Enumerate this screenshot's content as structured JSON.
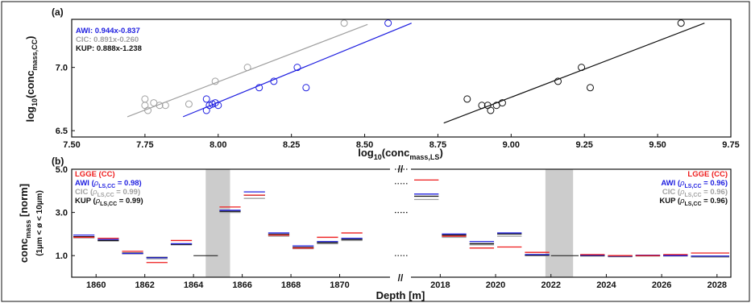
{
  "figure": {
    "panel_a_label": "(a)",
    "panel_b_label": "(b)"
  },
  "chart_data": [
    {
      "type": "scatter",
      "panel": "(a)",
      "xlabel": {
        "base": "log",
        "sub1": "10",
        "mid": "(conc",
        "sub2": "mass,LS",
        "end": ")"
      },
      "ylabel": {
        "base": "log",
        "sub1": "10",
        "mid": "(conc",
        "sub2": "mass,CC",
        "end": ")"
      },
      "xlim": [
        7.5,
        9.75
      ],
      "ylim": [
        6.45,
        7.38
      ],
      "xticks": [
        "7.50",
        "7.75",
        "8.00",
        "8.25",
        "8.50",
        "8.75",
        "9.00",
        "9.25",
        "9.50",
        "9.75"
      ],
      "yticks": [
        "6.5",
        "7.0"
      ],
      "legend_position": "top-left",
      "series": [
        {
          "name": "AWI: 0.944x-0.837",
          "color": "#2020e0",
          "points": [
            [
              7.96,
              6.75
            ],
            [
              7.97,
              6.7
            ],
            [
              7.98,
              6.71
            ],
            [
              7.99,
              6.72
            ],
            [
              8.0,
              6.7
            ],
            [
              7.96,
              6.66
            ],
            [
              8.14,
              6.84
            ],
            [
              8.19,
              6.89
            ],
            [
              8.27,
              7.0
            ],
            [
              8.3,
              6.84
            ],
            [
              8.58,
              7.35
            ]
          ],
          "fit": [
            [
              7.88,
              6.61
            ],
            [
              8.66,
              7.35
            ]
          ]
        },
        {
          "name": "CIC: 0.891x-0.260",
          "color": "#a0a0a0",
          "points": [
            [
              7.75,
              6.75
            ],
            [
              7.75,
              6.7
            ],
            [
              7.76,
              6.66
            ],
            [
              7.78,
              6.72
            ],
            [
              7.8,
              6.7
            ],
            [
              7.82,
              6.7
            ],
            [
              7.9,
              6.71
            ],
            [
              7.99,
              6.89
            ],
            [
              8.1,
              7.0
            ],
            [
              8.43,
              7.35
            ]
          ],
          "fit": [
            [
              7.69,
              6.61
            ],
            [
              8.51,
              7.34
            ]
          ]
        },
        {
          "name": "KUP: 0.888x-1.238",
          "color": "#111111",
          "points": [
            [
              8.85,
              6.75
            ],
            [
              8.9,
              6.7
            ],
            [
              8.92,
              6.7
            ],
            [
              8.93,
              6.66
            ],
            [
              8.95,
              6.7
            ],
            [
              8.97,
              6.72
            ],
            [
              9.16,
              6.89
            ],
            [
              9.24,
              7.0
            ],
            [
              9.27,
              6.84
            ],
            [
              9.58,
              7.35
            ]
          ],
          "fit": [
            [
              8.77,
              6.56
            ],
            [
              9.66,
              7.35
            ]
          ]
        }
      ]
    },
    {
      "type": "bar",
      "panel": "(b)",
      "xlabel": "Depth [m]",
      "ylabel": {
        "base": "conc",
        "sub": "mass",
        "unit": " [norm]",
        "line2": "(1µm < ø < 10µm)"
      },
      "ylim": [
        0,
        5
      ],
      "yticks": [
        "1.0",
        "3.0",
        "5.0"
      ],
      "break_mark": "//",
      "left_xticks": [
        "1860",
        "1862",
        "1864",
        "1866",
        "1868",
        "1870"
      ],
      "right_xticks": [
        "2018",
        "2020",
        "2022",
        "2024",
        "2026",
        "2028"
      ],
      "left_range": [
        1859,
        1872
      ],
      "right_range": [
        2017,
        2028.5
      ],
      "shaded_left": [
        1864.5,
        1865.5
      ],
      "shaded_right": [
        2021.8,
        2022.8
      ],
      "legend_left": [
        {
          "text": "LGGE (CC)",
          "color": "#ee1c1c",
          "rho": false
        },
        {
          "text": "AWI (",
          "value": " = 0.98)",
          "color": "#2020e0",
          "rho": true
        },
        {
          "text": "CIC (",
          "value": " = 0.99)",
          "color": "#a0a0a0",
          "rho": true
        },
        {
          "text": "KUP (",
          "value": " = 0.99)",
          "color": "#111111",
          "rho": true
        }
      ],
      "legend_right": [
        {
          "text": "LGGE (CC)",
          "color": "#ee1c1c",
          "rho": false
        },
        {
          "text": "AWI (",
          "value": " = 0.96)",
          "color": "#2020e0",
          "rho": true
        },
        {
          "text": "CIC (",
          "value": " = 0.96)",
          "color": "#a0a0a0",
          "rho": true
        },
        {
          "text": "KUP (",
          "value": " = 0.96)",
          "color": "#111111",
          "rho": true
        }
      ],
      "rho_symbol": "ρ",
      "rho_sub": "LS,CC",
      "series_colors": {
        "LGGE": "#ee1c1c",
        "AWI": "#2020e0",
        "CIC": "#a0a0a0",
        "KUP": "#111111"
      },
      "left_segments": [
        {
          "x": [
            1859,
            1860
          ],
          "LGGE": 1.85,
          "AWI": 1.95,
          "CIC": 1.82,
          "KUP": 1.88
        },
        {
          "x": [
            1860,
            1861
          ],
          "LGGE": 1.8,
          "AWI": 1.75,
          "CIC": 1.68,
          "KUP": 1.7
        },
        {
          "x": [
            1861,
            1862
          ],
          "LGGE": 1.2,
          "AWI": 1.1,
          "CIC": 1.08,
          "KUP": 1.12
        },
        {
          "x": [
            1862,
            1863
          ],
          "LGGE": 0.68,
          "AWI": 0.9,
          "CIC": 0.85,
          "KUP": 0.92
        },
        {
          "x": [
            1863,
            1864
          ],
          "LGGE": 1.7,
          "AWI": 1.55,
          "CIC": 1.5,
          "KUP": 1.52
        },
        {
          "x": [
            1865,
            1866
          ],
          "LGGE": 3.25,
          "AWI": 3.1,
          "CIC": 3.0,
          "KUP": 3.05
        },
        {
          "x": [
            1866,
            1867
          ],
          "LGGE": 3.8,
          "AWI": 3.95,
          "CIC": 3.65,
          "KUP": 3.8
        },
        {
          "x": [
            1867,
            1868
          ],
          "LGGE": 1.95,
          "AWI": 2.05,
          "CIC": 1.9,
          "KUP": 1.98
        },
        {
          "x": [
            1868,
            1869
          ],
          "LGGE": 1.35,
          "AWI": 1.45,
          "CIC": 1.32,
          "KUP": 1.38
        },
        {
          "x": [
            1869,
            1870
          ],
          "LGGE": 1.85,
          "AWI": 1.65,
          "CIC": 1.55,
          "KUP": 1.6
        },
        {
          "x": [
            1870,
            1871
          ],
          "LGGE": 2.05,
          "AWI": 1.8,
          "CIC": 1.7,
          "KUP": 1.75
        }
      ],
      "left_flat": {
        "x": [
          1864,
          1865
        ],
        "value": 1.0
      },
      "right_segments": [
        {
          "x": [
            2017,
            2018
          ],
          "LGGE": 4.5,
          "AWI": 3.85,
          "CIC": 3.6,
          "KUP": 3.75
        },
        {
          "x": [
            2018,
            2019
          ],
          "LGGE": 1.9,
          "AWI": 2.0,
          "CIC": 1.85,
          "KUP": 1.95
        },
        {
          "x": [
            2019,
            2020
          ],
          "LGGE": 1.35,
          "AWI": 1.65,
          "CIC": 1.5,
          "KUP": 1.55
        },
        {
          "x": [
            2020,
            2021
          ],
          "LGGE": 1.4,
          "AWI": 2.05,
          "CIC": 1.9,
          "KUP": 2.0
        },
        {
          "x": [
            2021,
            2022
          ],
          "LGGE": 1.15,
          "AWI": 1.05,
          "CIC": 1.0,
          "KUP": 1.02
        },
        {
          "x": [
            2023,
            2024
          ],
          "LGGE": 1.05,
          "AWI": 1.02,
          "CIC": 0.98,
          "KUP": 1.0
        },
        {
          "x": [
            2024,
            2025
          ],
          "LGGE": 1.0,
          "AWI": 0.98,
          "CIC": 0.95,
          "KUP": 0.97
        },
        {
          "x": [
            2025,
            2026
          ],
          "LGGE": 1.0,
          "AWI": 1.02,
          "CIC": 0.98,
          "KUP": 1.0
        },
        {
          "x": [
            2026,
            2027
          ],
          "LGGE": 1.05,
          "AWI": 1.0,
          "CIC": 0.98,
          "KUP": 1.0
        },
        {
          "x": [
            2027,
            2028.5
          ],
          "LGGE": 1.12,
          "AWI": 0.98,
          "CIC": 0.93,
          "KUP": 0.97
        }
      ],
      "right_flat": {
        "x": [
          2022,
          2023
        ],
        "value": 1.0
      }
    }
  ]
}
